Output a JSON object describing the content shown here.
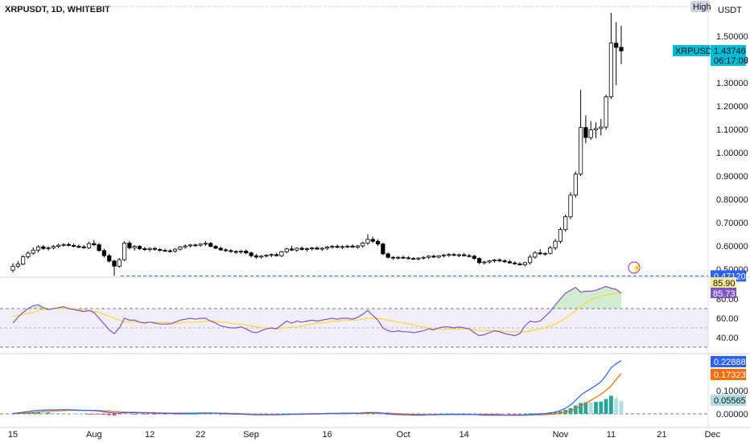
{
  "header": {
    "symbol": "XRPUSDT, 1D, WHITEBIT"
  },
  "price_pane": {
    "currency": "USDT",
    "high_label": "High",
    "current_price_tag": {
      "symbol": "XRPUSDT",
      "price": "1.43746",
      "countdown": "06:17:08",
      "color": "#00bcd4"
    },
    "low_line_tag": {
      "value": "0.47120",
      "color": "#2962ff"
    },
    "y_ticks": [
      "1.50000",
      "1.40000",
      "1.30000",
      "1.20000",
      "1.10000",
      "1.00000",
      "0.90000",
      "0.80000",
      "0.70000",
      "0.60000",
      "0.50000"
    ]
  },
  "rsi_pane": {
    "y_ticks": [
      "80.00",
      "60.00",
      "40.00"
    ],
    "tags": [
      {
        "value": "85.90",
        "color": "#f7e79a",
        "text_color": "#131722"
      },
      {
        "value": "85.73",
        "color": "#7e57c2",
        "text_color": "#ffffff"
      }
    ]
  },
  "macd_pane": {
    "y_ticks": [
      "0.10000",
      "0.00000"
    ],
    "tags": [
      {
        "value": "0.22888",
        "color": "#2962ff",
        "text_color": "#ffffff"
      },
      {
        "value": "0.17323",
        "color": "#ff6d00",
        "text_color": "#ffffff"
      },
      {
        "value": "0.05565",
        "color": "#b2dfdb",
        "text_color": "#131722"
      }
    ]
  },
  "x_axis": {
    "ticks": [
      {
        "label": "15",
        "index": 0
      },
      {
        "label": "Aug",
        "index": 16
      },
      {
        "label": "12",
        "index": 27
      },
      {
        "label": "22",
        "index": 37
      },
      {
        "label": "Sep",
        "index": 47
      },
      {
        "label": "16",
        "index": 62
      },
      {
        "label": "Oct",
        "index": 77
      },
      {
        "label": "14",
        "index": 89
      },
      {
        "label": "Nov",
        "index": 108
      },
      {
        "label": "11",
        "index": 118
      },
      {
        "label": "21",
        "index": 128
      },
      {
        "label": "Dec",
        "index": 138
      }
    ]
  },
  "chart_data": {
    "type": "candlestick",
    "title": "XRPUSDT, 1D, WHITEBIT",
    "ylabel": "USDT",
    "ylim": [
      0.47,
      1.6
    ],
    "colors": {
      "up": "#ffffff",
      "down": "#000000",
      "wick": "#000000",
      "rsi": "#7e57c2",
      "rsi_ma": "#fdd835",
      "macd": "#2962ff",
      "signal": "#ff6d00"
    },
    "candles": [
      [
        0.496,
        0.526,
        0.486,
        0.513
      ],
      [
        0.513,
        0.535,
        0.505,
        0.522
      ],
      [
        0.522,
        0.56,
        0.518,
        0.553
      ],
      [
        0.553,
        0.578,
        0.545,
        0.569
      ],
      [
        0.569,
        0.593,
        0.562,
        0.582
      ],
      [
        0.582,
        0.603,
        0.572,
        0.596
      ],
      [
        0.596,
        0.604,
        0.582,
        0.589
      ],
      [
        0.589,
        0.598,
        0.58,
        0.592
      ],
      [
        0.592,
        0.604,
        0.585,
        0.598
      ],
      [
        0.598,
        0.61,
        0.59,
        0.603
      ],
      [
        0.603,
        0.612,
        0.596,
        0.606
      ],
      [
        0.606,
        0.614,
        0.598,
        0.602
      ],
      [
        0.602,
        0.61,
        0.594,
        0.598
      ],
      [
        0.598,
        0.606,
        0.59,
        0.596
      ],
      [
        0.596,
        0.604,
        0.588,
        0.592
      ],
      [
        0.592,
        0.618,
        0.586,
        0.61
      ],
      [
        0.61,
        0.626,
        0.6,
        0.605
      ],
      [
        0.605,
        0.612,
        0.575,
        0.58
      ],
      [
        0.58,
        0.588,
        0.55,
        0.558
      ],
      [
        0.558,
        0.566,
        0.528,
        0.535
      ],
      [
        0.535,
        0.542,
        0.472,
        0.513
      ],
      [
        0.513,
        0.548,
        0.506,
        0.541
      ],
      [
        0.541,
        0.62,
        0.535,
        0.612
      ],
      [
        0.612,
        0.622,
        0.585,
        0.592
      ],
      [
        0.592,
        0.604,
        0.58,
        0.598
      ],
      [
        0.598,
        0.603,
        0.582,
        0.588
      ],
      [
        0.588,
        0.596,
        0.578,
        0.584
      ],
      [
        0.584,
        0.594,
        0.575,
        0.589
      ],
      [
        0.589,
        0.596,
        0.58,
        0.585
      ],
      [
        0.585,
        0.59,
        0.576,
        0.581
      ],
      [
        0.581,
        0.588,
        0.574,
        0.579
      ],
      [
        0.579,
        0.586,
        0.572,
        0.578
      ],
      [
        0.578,
        0.59,
        0.572,
        0.586
      ],
      [
        0.586,
        0.6,
        0.58,
        0.596
      ],
      [
        0.596,
        0.606,
        0.588,
        0.6
      ],
      [
        0.6,
        0.608,
        0.594,
        0.604
      ],
      [
        0.604,
        0.61,
        0.596,
        0.603
      ],
      [
        0.603,
        0.612,
        0.596,
        0.608
      ],
      [
        0.608,
        0.62,
        0.6,
        0.611
      ],
      [
        0.611,
        0.616,
        0.594,
        0.598
      ],
      [
        0.598,
        0.604,
        0.586,
        0.59
      ],
      [
        0.59,
        0.596,
        0.578,
        0.583
      ],
      [
        0.583,
        0.59,
        0.574,
        0.58
      ],
      [
        0.58,
        0.586,
        0.57,
        0.576
      ],
      [
        0.576,
        0.582,
        0.566,
        0.574
      ],
      [
        0.574,
        0.582,
        0.566,
        0.578
      ],
      [
        0.578,
        0.584,
        0.564,
        0.57
      ],
      [
        0.57,
        0.576,
        0.55,
        0.558
      ],
      [
        0.558,
        0.566,
        0.544,
        0.552
      ],
      [
        0.552,
        0.56,
        0.546,
        0.556
      ],
      [
        0.556,
        0.564,
        0.55,
        0.56
      ],
      [
        0.56,
        0.568,
        0.552,
        0.563
      ],
      [
        0.563,
        0.57,
        0.554,
        0.558
      ],
      [
        0.558,
        0.58,
        0.552,
        0.575
      ],
      [
        0.575,
        0.592,
        0.568,
        0.587
      ],
      [
        0.587,
        0.6,
        0.578,
        0.582
      ],
      [
        0.582,
        0.594,
        0.574,
        0.59
      ],
      [
        0.59,
        0.598,
        0.58,
        0.585
      ],
      [
        0.585,
        0.593,
        0.576,
        0.588
      ],
      [
        0.588,
        0.596,
        0.58,
        0.591
      ],
      [
        0.591,
        0.598,
        0.584,
        0.586
      ],
      [
        0.586,
        0.594,
        0.578,
        0.59
      ],
      [
        0.59,
        0.6,
        0.582,
        0.595
      ],
      [
        0.595,
        0.604,
        0.588,
        0.598
      ],
      [
        0.598,
        0.606,
        0.59,
        0.594
      ],
      [
        0.594,
        0.602,
        0.586,
        0.597
      ],
      [
        0.597,
        0.605,
        0.59,
        0.599
      ],
      [
        0.599,
        0.607,
        0.592,
        0.595
      ],
      [
        0.595,
        0.604,
        0.588,
        0.6
      ],
      [
        0.6,
        0.618,
        0.592,
        0.612
      ],
      [
        0.612,
        0.65,
        0.604,
        0.628
      ],
      [
        0.628,
        0.64,
        0.612,
        0.62
      ],
      [
        0.62,
        0.628,
        0.6,
        0.608
      ],
      [
        0.608,
        0.614,
        0.56,
        0.566
      ],
      [
        0.566,
        0.572,
        0.545,
        0.551
      ],
      [
        0.551,
        0.556,
        0.54,
        0.548
      ],
      [
        0.548,
        0.556,
        0.542,
        0.551
      ],
      [
        0.551,
        0.558,
        0.544,
        0.549
      ],
      [
        0.549,
        0.556,
        0.542,
        0.546
      ],
      [
        0.546,
        0.552,
        0.54,
        0.544
      ],
      [
        0.544,
        0.551,
        0.538,
        0.548
      ],
      [
        0.548,
        0.555,
        0.542,
        0.551
      ],
      [
        0.551,
        0.56,
        0.545,
        0.556
      ],
      [
        0.556,
        0.563,
        0.548,
        0.552
      ],
      [
        0.552,
        0.56,
        0.546,
        0.558
      ],
      [
        0.558,
        0.566,
        0.55,
        0.561
      ],
      [
        0.561,
        0.568,
        0.553,
        0.563
      ],
      [
        0.563,
        0.57,
        0.556,
        0.56
      ],
      [
        0.56,
        0.567,
        0.552,
        0.562
      ],
      [
        0.562,
        0.569,
        0.554,
        0.558
      ],
      [
        0.558,
        0.566,
        0.55,
        0.556
      ],
      [
        0.556,
        0.562,
        0.54,
        0.546
      ],
      [
        0.546,
        0.552,
        0.522,
        0.528
      ],
      [
        0.528,
        0.536,
        0.52,
        0.531
      ],
      [
        0.531,
        0.54,
        0.524,
        0.536
      ],
      [
        0.536,
        0.544,
        0.528,
        0.54
      ],
      [
        0.54,
        0.547,
        0.53,
        0.536
      ],
      [
        0.536,
        0.543,
        0.527,
        0.532
      ],
      [
        0.532,
        0.54,
        0.524,
        0.527
      ],
      [
        0.527,
        0.534,
        0.519,
        0.523
      ],
      [
        0.523,
        0.53,
        0.515,
        0.519
      ],
      [
        0.519,
        0.532,
        0.512,
        0.528
      ],
      [
        0.528,
        0.562,
        0.52,
        0.552
      ],
      [
        0.552,
        0.578,
        0.545,
        0.57
      ],
      [
        0.57,
        0.586,
        0.562,
        0.566
      ],
      [
        0.566,
        0.572,
        0.558,
        0.568
      ],
      [
        0.568,
        0.6,
        0.564,
        0.592
      ],
      [
        0.592,
        0.63,
        0.582,
        0.62
      ],
      [
        0.62,
        0.68,
        0.61,
        0.67
      ],
      [
        0.67,
        0.735,
        0.66,
        0.725
      ],
      [
        0.725,
        0.83,
        0.715,
        0.818
      ],
      [
        0.818,
        0.92,
        0.808,
        0.908
      ],
      [
        0.908,
        1.27,
        0.9,
        1.108
      ],
      [
        1.108,
        1.16,
        1.04,
        1.065
      ],
      [
        1.065,
        1.135,
        1.055,
        1.098
      ],
      [
        1.098,
        1.13,
        1.062,
        1.104
      ],
      [
        1.104,
        1.145,
        1.074,
        1.11
      ],
      [
        1.11,
        1.25,
        1.098,
        1.24
      ],
      [
        1.24,
        1.6,
        1.23,
        1.47
      ],
      [
        1.47,
        1.56,
        1.29,
        1.452
      ],
      [
        1.452,
        1.545,
        1.38,
        1.437
      ]
    ],
    "rsi": [
      55,
      61,
      66,
      70,
      73,
      74,
      71,
      69,
      70,
      71,
      72,
      70,
      69,
      68,
      67,
      68,
      66,
      60,
      54,
      48,
      44,
      50,
      60,
      58,
      58,
      56,
      55,
      56,
      55,
      54,
      54,
      54,
      56,
      58,
      59,
      60,
      59,
      60,
      60,
      57,
      55,
      52,
      51,
      50,
      50,
      51,
      49,
      46,
      45,
      47,
      49,
      50,
      49,
      53,
      57,
      55,
      57,
      56,
      57,
      58,
      57,
      58,
      59,
      60,
      59,
      60,
      60,
      59,
      61,
      64,
      68,
      63,
      58,
      50,
      47,
      46,
      47,
      46,
      46,
      45,
      46,
      47,
      49,
      48,
      50,
      51,
      51,
      50,
      51,
      50,
      49,
      45,
      42,
      43,
      45,
      47,
      46,
      44,
      43,
      42,
      44,
      52,
      57,
      56,
      57,
      62,
      67,
      74,
      80,
      86,
      89,
      92,
      87,
      88,
      88,
      89,
      91,
      93,
      91,
      90,
      86
    ],
    "rsi_ma": [
      62,
      63,
      64,
      65,
      66,
      68,
      69,
      69,
      70,
      70,
      70,
      70,
      70,
      69,
      69,
      68,
      67,
      66,
      64,
      62,
      60,
      58,
      56,
      56,
      56,
      56,
      56,
      56,
      56,
      56,
      56,
      55,
      55,
      55,
      56,
      56,
      56,
      56,
      57,
      57,
      57,
      56,
      56,
      55,
      54,
      54,
      53,
      52,
      51,
      50,
      50,
      49,
      49,
      50,
      50,
      51,
      51,
      52,
      53,
      54,
      55,
      55,
      56,
      57,
      57,
      58,
      58,
      58,
      58,
      59,
      60,
      60,
      60,
      59,
      58,
      57,
      56,
      55,
      54,
      53,
      52,
      51,
      50,
      49,
      49,
      48,
      49,
      49,
      49,
      49,
      49,
      48,
      47,
      47,
      47,
      47,
      47,
      46,
      46,
      46,
      46,
      46,
      47,
      48,
      49,
      50,
      52,
      54,
      57,
      60,
      64,
      68,
      72,
      76,
      79,
      81,
      83,
      84,
      85,
      86,
      86
    ],
    "macd": [
      0.002,
      0.004,
      0.007,
      0.01,
      0.013,
      0.015,
      0.016,
      0.017,
      0.017,
      0.018,
      0.018,
      0.018,
      0.017,
      0.016,
      0.015,
      0.015,
      0.014,
      0.012,
      0.009,
      0.006,
      0.003,
      0.003,
      0.005,
      0.005,
      0.005,
      0.005,
      0.004,
      0.004,
      0.003,
      0.003,
      0.002,
      0.002,
      0.002,
      0.002,
      0.003,
      0.003,
      0.003,
      0.004,
      0.004,
      0.004,
      0.003,
      0.002,
      0.001,
      0.0,
      -0.001,
      -0.001,
      -0.002,
      -0.003,
      -0.004,
      -0.004,
      -0.004,
      -0.004,
      -0.004,
      -0.003,
      -0.002,
      -0.001,
      -0.001,
      0.0,
      0.0,
      0.001,
      0.001,
      0.001,
      0.002,
      0.002,
      0.002,
      0.003,
      0.003,
      0.003,
      0.003,
      0.004,
      0.006,
      0.006,
      0.005,
      0.003,
      0.0,
      -0.002,
      -0.003,
      -0.004,
      -0.004,
      -0.005,
      -0.005,
      -0.005,
      -0.004,
      -0.004,
      -0.003,
      -0.003,
      -0.002,
      -0.002,
      -0.002,
      -0.002,
      -0.002,
      -0.003,
      -0.004,
      -0.005,
      -0.006,
      -0.006,
      -0.006,
      -0.006,
      -0.006,
      -0.006,
      -0.006,
      -0.005,
      -0.003,
      -0.002,
      -0.001,
      0.001,
      0.004,
      0.008,
      0.014,
      0.024,
      0.038,
      0.058,
      0.08,
      0.095,
      0.108,
      0.122,
      0.138,
      0.165,
      0.198,
      0.215,
      0.229
    ],
    "signal": [
      0.001,
      0.002,
      0.003,
      0.005,
      0.007,
      0.008,
      0.01,
      0.011,
      0.012,
      0.013,
      0.014,
      0.015,
      0.015,
      0.015,
      0.015,
      0.015,
      0.015,
      0.014,
      0.013,
      0.012,
      0.01,
      0.009,
      0.008,
      0.007,
      0.007,
      0.006,
      0.006,
      0.005,
      0.005,
      0.004,
      0.004,
      0.003,
      0.003,
      0.003,
      0.003,
      0.003,
      0.003,
      0.003,
      0.003,
      0.003,
      0.003,
      0.003,
      0.003,
      0.002,
      0.002,
      0.001,
      0.0,
      -0.001,
      -0.001,
      -0.002,
      -0.002,
      -0.003,
      -0.003,
      -0.003,
      -0.003,
      -0.002,
      -0.002,
      -0.002,
      -0.001,
      -0.001,
      -0.001,
      0.0,
      0.0,
      0.001,
      0.001,
      0.001,
      0.001,
      0.002,
      0.002,
      0.002,
      0.003,
      0.003,
      0.003,
      0.003,
      0.003,
      0.002,
      0.001,
      0.0,
      -0.001,
      -0.002,
      -0.002,
      -0.003,
      -0.003,
      -0.003,
      -0.003,
      -0.003,
      -0.003,
      -0.003,
      -0.003,
      -0.003,
      -0.003,
      -0.003,
      -0.003,
      -0.003,
      -0.004,
      -0.004,
      -0.004,
      -0.005,
      -0.005,
      -0.005,
      -0.005,
      -0.005,
      -0.005,
      -0.004,
      -0.004,
      -0.003,
      -0.002,
      0.0,
      0.003,
      0.007,
      0.013,
      0.022,
      0.033,
      0.045,
      0.058,
      0.071,
      0.085,
      0.101,
      0.12,
      0.148,
      0.173
    ]
  }
}
